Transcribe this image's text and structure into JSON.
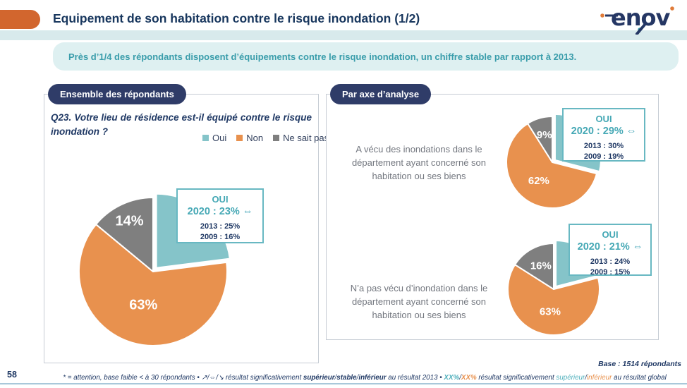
{
  "header": {
    "title": "Equipement de son habitation contre le risque inondation (1/2)",
    "logo_text": "enov",
    "subtitle": "Près d’1/4 des répondants disposent d’équipements contre le risque inondation, un chiffre stable par rapport à 2013."
  },
  "left_panel": {
    "badge": "Ensemble des répondants",
    "question": "Q23. Votre lieu de résidence est-il équipé contre le risque inondation ?",
    "legend": [
      {
        "label": "Oui",
        "color": "#85c4c9"
      },
      {
        "label": "Non",
        "color": "#e8914e"
      },
      {
        "label": "Ne sait pas",
        "color": "#7f7f7f"
      }
    ],
    "callout": {
      "title": "OUI",
      "current": "2020 : 23%",
      "arrow": "⇔",
      "history": [
        "2013 : 25%",
        "2009 : 16%"
      ]
    }
  },
  "right_panel": {
    "badge": "Par axe d’analyse",
    "rows": [
      {
        "label": "A vécu des inondations dans le département ayant concerné son habitation ou ses biens",
        "callout": {
          "title": "OUI",
          "current": "2020 : 29%",
          "arrow": "⇔",
          "history": [
            "2013 : 30%",
            "2009 : 19%"
          ]
        }
      },
      {
        "label": "N’a pas vécu d’inondation dans le département ayant concerné son habitation ou ses biens",
        "callout": {
          "title": "OUI",
          "current": "2020 : 21%",
          "arrow": "⇔",
          "history": [
            "2013 : 24%",
            "2009 : 15%"
          ]
        }
      }
    ]
  },
  "footer": {
    "page_number": "58",
    "base_note": "Base : 1514 répondants",
    "note_segments": [
      {
        "text": "* = attention, base faible < à 30 répondants • ",
        "style": "navy"
      },
      {
        "text": "↗/⇔/↘",
        "style": "navy"
      },
      {
        "text": " résultat significativement ",
        "style": "navy"
      },
      {
        "text": "supérieur",
        "style": "navy-bold"
      },
      {
        "text": "/",
        "style": "navy"
      },
      {
        "text": "stable",
        "style": "navy-bold"
      },
      {
        "text": "/",
        "style": "navy"
      },
      {
        "text": "inférieur",
        "style": "navy-bold"
      },
      {
        "text": " au résultat 2013 • ",
        "style": "navy"
      },
      {
        "text": "XX%",
        "style": "teal-bold"
      },
      {
        "text": "/",
        "style": "navy"
      },
      {
        "text": "XX%",
        "style": "orange-bold"
      },
      {
        "text": " résultat significativement ",
        "style": "navy"
      },
      {
        "text": "supérieur",
        "style": "teal"
      },
      {
        "text": "/",
        "style": "navy"
      },
      {
        "text": "inférieur",
        "style": "orange"
      },
      {
        "text": " au résultat global",
        "style": "navy"
      }
    ]
  },
  "colors": {
    "navy": "#1f3864",
    "badge_navy": "#2f3c68",
    "teal_slice": "#85c4c9",
    "teal_text": "#45a8b5",
    "teal_border": "#68b8c2",
    "orange_slice": "#e8914e",
    "header_orange": "#d2662e",
    "gray_slice": "#7f7f7f",
    "band_teal": "#d8eaec",
    "subtitle_bg": "#def0f1"
  },
  "chart_data": [
    {
      "id": "ensemble",
      "type": "pie",
      "title": "Ensemble des répondants — Q23. Votre lieu de résidence est-il équipé contre le risque inondation ?",
      "categories": [
        "Oui",
        "Non",
        "Ne sait pas"
      ],
      "values": [
        23,
        63,
        14
      ],
      "slice_labels": [
        "",
        "63%",
        "14%"
      ],
      "colors": [
        "#85c4c9",
        "#e8914e",
        "#7f7f7f"
      ],
      "exploded": "Oui",
      "legend_position": "above-right",
      "oui_trend": {
        "2020": 23,
        "2013": 25,
        "2009": 16,
        "vs_2013": "stable"
      }
    },
    {
      "id": "vecu",
      "type": "pie",
      "title": "A vécu des inondations dans le département ayant concerné son habitation ou ses biens",
      "categories": [
        "Oui",
        "Non",
        "Ne sait pas"
      ],
      "values": [
        29,
        62,
        9
      ],
      "slice_labels": [
        "",
        "62%",
        "9%"
      ],
      "colors": [
        "#85c4c9",
        "#e8914e",
        "#7f7f7f"
      ],
      "exploded": "Oui",
      "oui_trend": {
        "2020": 29,
        "2013": 30,
        "2009": 19,
        "vs_2013": "stable"
      }
    },
    {
      "id": "pas-vecu",
      "type": "pie",
      "title": "N’a pas vécu d’inondation dans le département ayant concerné son habitation ou ses biens",
      "categories": [
        "Oui",
        "Non",
        "Ne sait pas"
      ],
      "values": [
        21,
        63,
        16
      ],
      "slice_labels": [
        "",
        "63%",
        "16%"
      ],
      "colors": [
        "#85c4c9",
        "#e8914e",
        "#7f7f7f"
      ],
      "exploded": "Oui",
      "oui_trend": {
        "2020": 21,
        "2013": 24,
        "2009": 15,
        "vs_2013": "stable"
      }
    }
  ]
}
